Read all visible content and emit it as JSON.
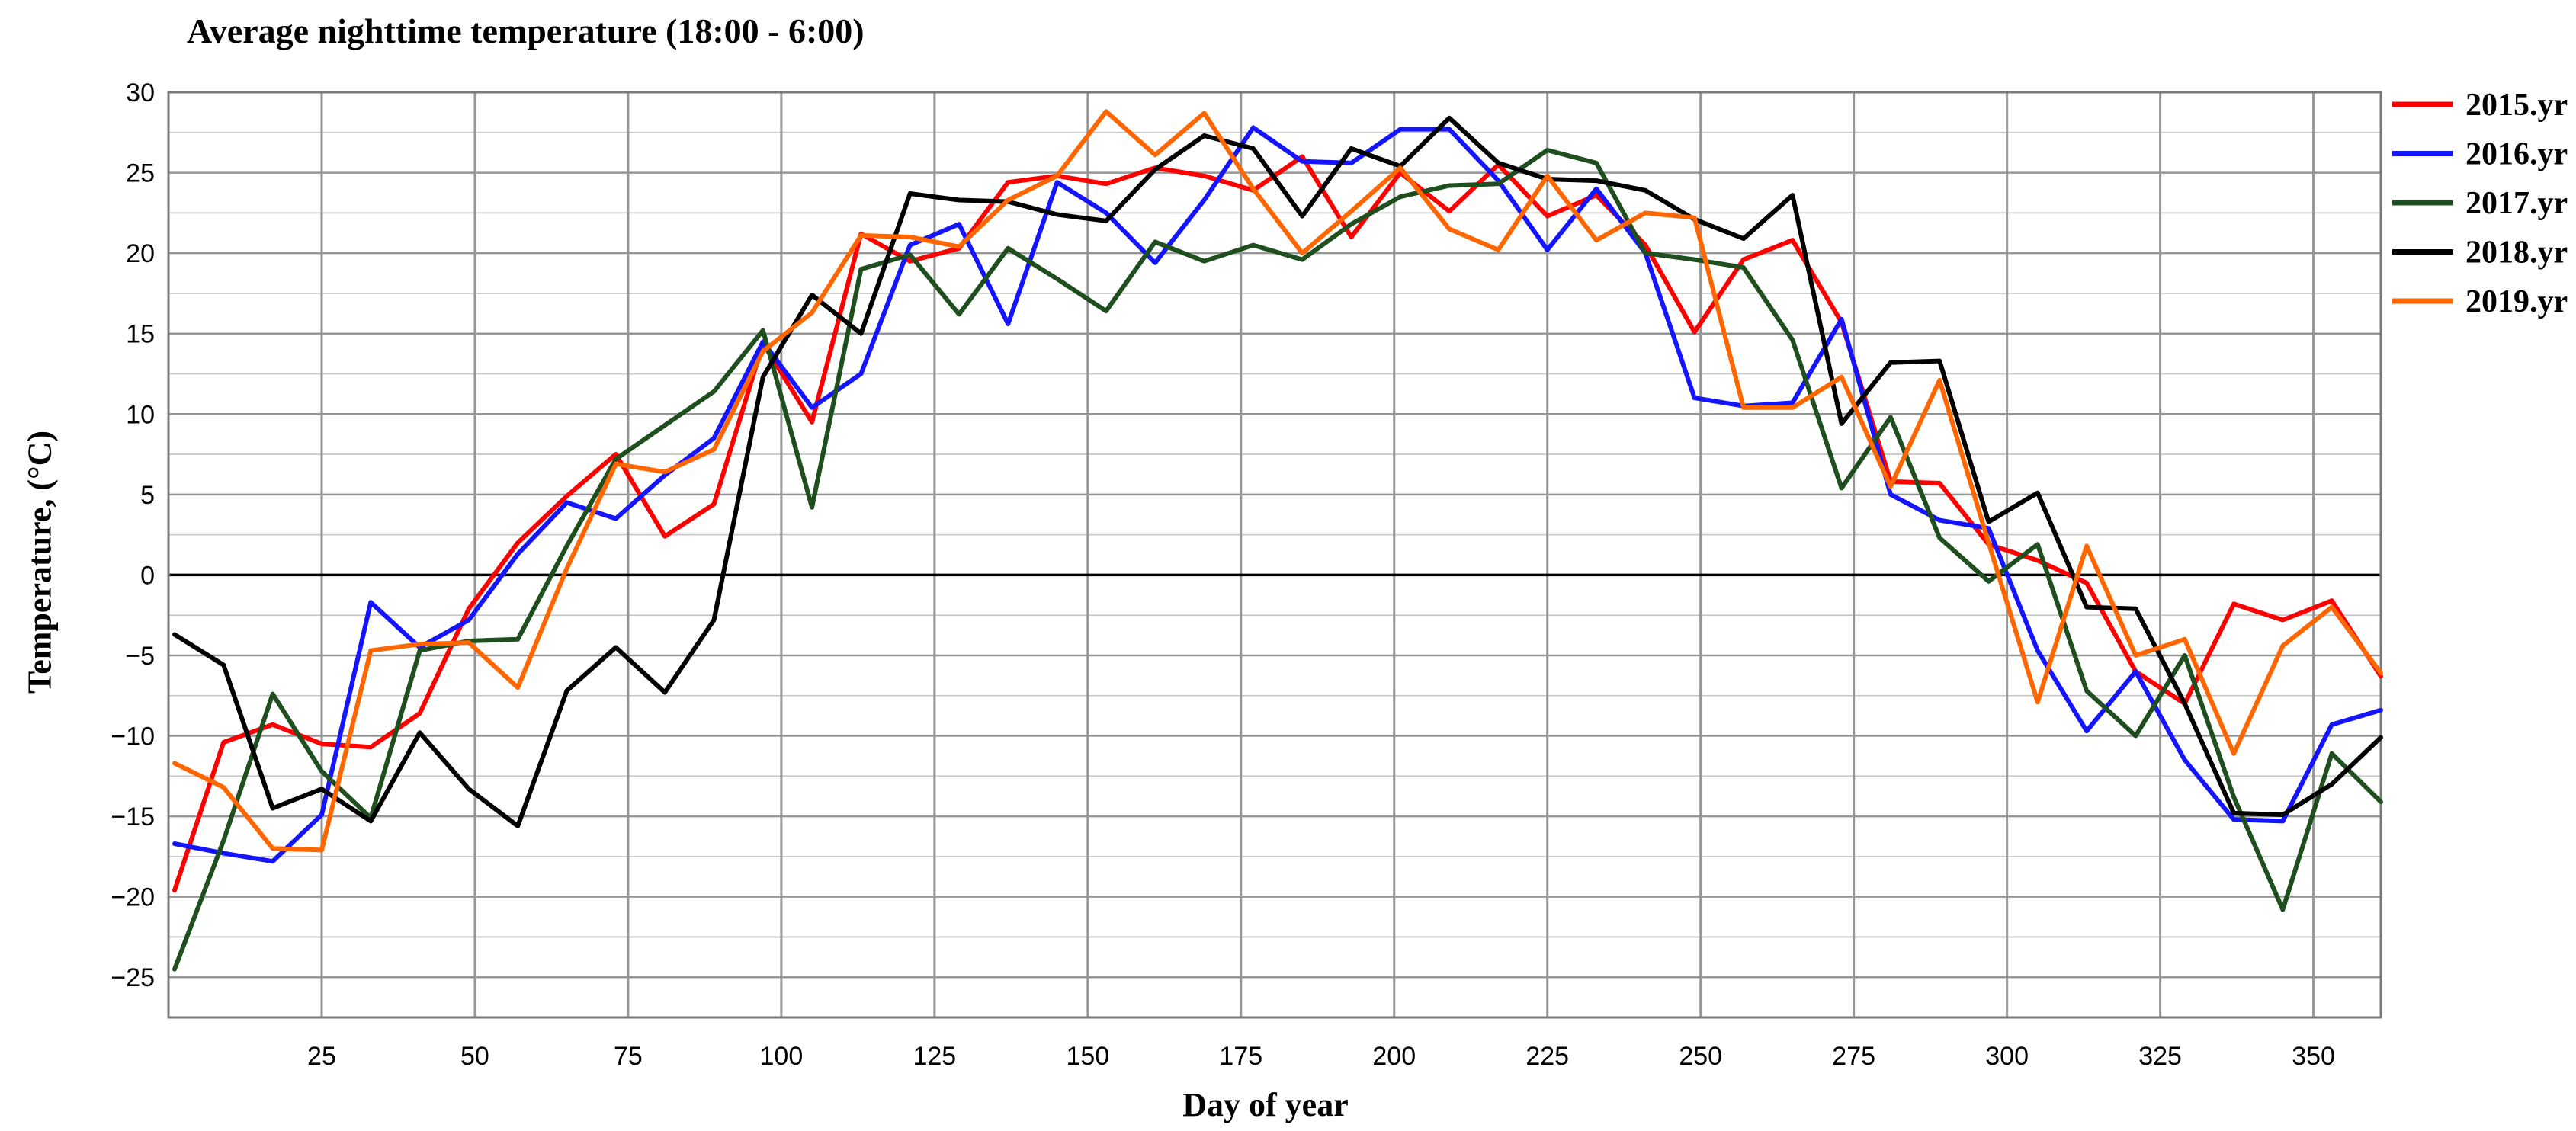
{
  "title": "Average nighttime temperature (18:00 - 6:00)",
  "chart_data": {
    "type": "line",
    "title": "Average nighttime temperature (18:00 - 6:00)",
    "xlabel": "Day of year",
    "ylabel": "Temperature, (°C)",
    "xlim": [
      0,
      361
    ],
    "ylim": [
      -27.5,
      30
    ],
    "grid": "on",
    "y_gridline_step": 2.5,
    "x_gridline_step": 25,
    "x_ticks": [
      25,
      50,
      75,
      100,
      125,
      150,
      175,
      200,
      225,
      250,
      275,
      300,
      325,
      350
    ],
    "y_ticks": [
      30,
      25,
      20,
      15,
      10,
      5,
      0,
      -5,
      -10,
      -15,
      -20,
      -25
    ],
    "legend_position": "top-right",
    "x": [
      1,
      9,
      17,
      25,
      33,
      41,
      49,
      57,
      65,
      73,
      81,
      89,
      97,
      105,
      113,
      121,
      129,
      137,
      145,
      153,
      161,
      169,
      177,
      185,
      193,
      201,
      209,
      217,
      225,
      233,
      241,
      249,
      257,
      265,
      273,
      281,
      289,
      297,
      305,
      313,
      321,
      329,
      337,
      345,
      353,
      361
    ],
    "series": [
      {
        "name": "2015.yr",
        "color": "#ff0000",
        "values": [
          -19.6,
          -10.4,
          -9.3,
          -10.5,
          -10.7,
          -8.6,
          -2.1,
          2,
          4.9,
          7.5,
          2.4,
          4.4,
          14.4,
          9.5,
          21.2,
          19.5,
          20.3,
          24.4,
          24.8,
          24.3,
          25.3,
          24.8,
          23.9,
          26,
          21,
          25,
          22.6,
          25.5,
          22.3,
          23.6,
          20.5,
          15.1,
          19.6,
          20.8,
          15.7,
          5.8,
          5.7,
          1.9,
          0.9,
          -0.5,
          -6,
          -8,
          -1.8,
          -2.8,
          -1.6,
          -6.3
        ]
      },
      {
        "name": "2016.yr",
        "color": "#1414ff",
        "values": [
          -16.7,
          -17.3,
          -17.8,
          -14.9,
          -1.7,
          -4.5,
          -2.8,
          1.3,
          4.5,
          3.5,
          6.2,
          8.5,
          14.5,
          10.4,
          12.5,
          20.5,
          21.8,
          15.6,
          24.4,
          22.5,
          19.4,
          23.3,
          27.8,
          25.7,
          25.6,
          27.7,
          27.7,
          24.5,
          20.2,
          24,
          20,
          11,
          10.5,
          10.7,
          15.9,
          5,
          3.4,
          2.9,
          -4.7,
          -9.7,
          -6,
          -11.5,
          -15.2,
          -15.3,
          -9.3,
          -8.4
        ]
      },
      {
        "name": "2017.yr",
        "color": "#1f4e1f",
        "values": [
          -24.5,
          -16.5,
          -7.4,
          -12.2,
          -15.1,
          -4.7,
          -4.1,
          -4,
          1.8,
          7.2,
          9.3,
          11.4,
          15.2,
          4.2,
          19,
          19.9,
          16.2,
          20.3,
          18.4,
          16.4,
          20.7,
          19.5,
          20.5,
          19.6,
          21.8,
          23.5,
          24.2,
          24.3,
          26.4,
          25.6,
          20,
          19.6,
          19.1,
          14.6,
          5.4,
          9.8,
          2.3,
          -0.4,
          1.9,
          -7.2,
          -10,
          -5,
          -13.8,
          -20.8,
          -11.1,
          -14.1
        ]
      },
      {
        "name": "2018.yr",
        "color": "#000000",
        "values": [
          -3.7,
          -5.6,
          -14.5,
          -13.3,
          -15.3,
          -9.8,
          -13.3,
          -15.6,
          -7.2,
          -4.5,
          -7.3,
          -2.8,
          12.3,
          17.4,
          15,
          23.7,
          23.3,
          23.2,
          22.4,
          22,
          25.2,
          27.3,
          26.5,
          22.3,
          26.5,
          25.4,
          28.4,
          25.6,
          24.6,
          24.5,
          23.9,
          22.1,
          20.9,
          23.6,
          9.4,
          13.2,
          13.3,
          3.3,
          5.1,
          -2,
          -2.1,
          -8,
          -14.8,
          -14.9,
          -13,
          -10.1
        ]
      },
      {
        "name": "2019.yr",
        "color": "#ff6600",
        "values": [
          -11.7,
          -13.2,
          -17,
          -17.1,
          -4.7,
          -4.3,
          -4.2,
          -7,
          0.4,
          6.9,
          6.4,
          7.8,
          13.9,
          16.3,
          21.1,
          21,
          20.4,
          23.3,
          24.8,
          28.8,
          26.1,
          28.7,
          24,
          20,
          22.6,
          25.3,
          21.5,
          20.2,
          24.8,
          20.8,
          22.5,
          22.2,
          10.4,
          10.4,
          12.3,
          5.5,
          12.1,
          2,
          -7.9,
          1.8,
          -5,
          -4,
          -11.1,
          -4.4,
          -2,
          -6.1
        ]
      }
    ]
  },
  "colors": {
    "minor_grid": "#c9c9c9",
    "major_grid": "#969696",
    "frame": "#7a7a7a",
    "zero_line": "#000000"
  }
}
